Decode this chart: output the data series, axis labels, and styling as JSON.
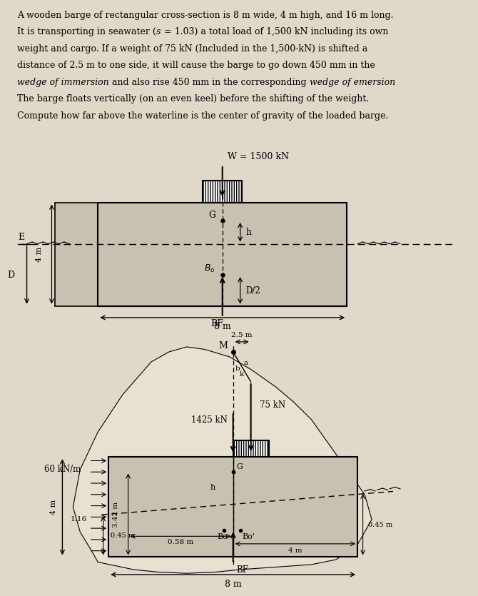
{
  "lines_data": [
    [
      [
        "A wooden barge of rectangular cross-section is 8 m wide, 4 m high, and 16 m long.",
        "normal"
      ]
    ],
    [
      [
        "It is transporting in seawater (",
        "normal"
      ],
      [
        "s",
        "italic"
      ],
      [
        " = 1.03) a total load of 1,500 kN including its own",
        "normal"
      ]
    ],
    [
      [
        "weight and cargo. If a weight of 75 kN (Included in the 1,500-kN) is shifted a",
        "normal"
      ]
    ],
    [
      [
        "distance of 2.5 m to one side, it will cause the barge to go down 450 mm in the",
        "normal"
      ]
    ],
    [
      [
        "wedge of immersion",
        "italic"
      ],
      [
        " and also rise 450 mm in the corresponding ",
        "normal"
      ],
      [
        "wedge of emersion",
        "italic"
      ]
    ],
    [
      [
        "The barge floats vertically (on an even keel) before the shifting of the weight.",
        "normal"
      ]
    ],
    [
      [
        "Compute how far above the waterline is the center of gravity of the loaded barge.",
        "normal"
      ]
    ]
  ],
  "fig1_title": "W = 1500 kN",
  "fig2_label_25m": "2.5 m",
  "fig2_label_M": "M",
  "fig2_label_60kN": "60 kN/m",
  "fig2_label_75kN": "75 kN",
  "fig2_label_1425": "1425 kN",
  "fig2_label_h": "h",
  "fig2_label_G": "G",
  "fig2_label_342": "3.42 m",
  "fig2_label_045left": "0.45 m",
  "fig2_label_058": "0.58 m",
  "fig2_label_4m": "4 m",
  "fig2_label_045right": "0.45 m",
  "fig2_label_116": "1.16",
  "fig2_label_8m": "8 m",
  "fig2_label_4mright": "4 m",
  "text_bg": "#d8d0c0",
  "fig_bg": "#e0d8c8",
  "blob_color": "#e8e0d0",
  "barge_fill": "#c8c0b0"
}
